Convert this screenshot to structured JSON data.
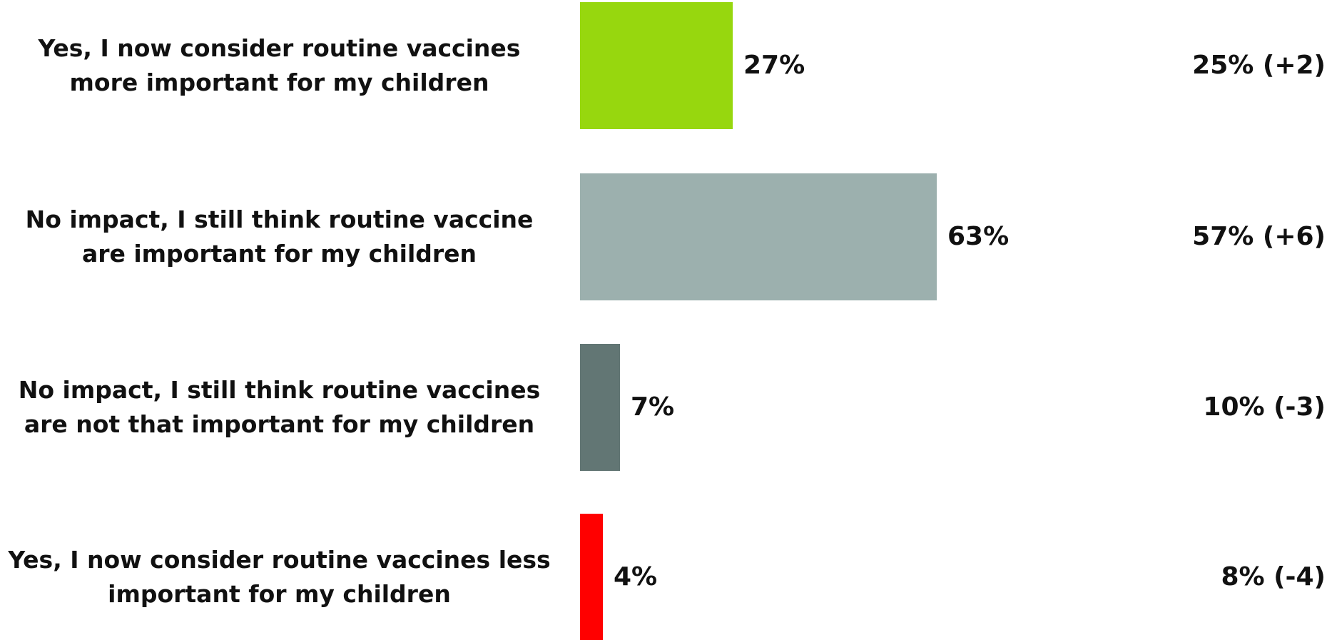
{
  "chart_data": {
    "type": "bar",
    "orientation": "horizontal",
    "categories": [
      "Yes, I now consider routine vaccines more important for my children",
      "No impact, I still think routine vaccine are important for my children",
      "No impact, I still think routine vaccines are not that important for my children",
      "Yes, I now consider routine vaccines less important for my children"
    ],
    "values": [
      27,
      63,
      7,
      4
    ],
    "value_labels": [
      "27%",
      "63%",
      "7%",
      "4%"
    ],
    "comparison_labels": [
      "25% (+2)",
      "57% (+6)",
      "10% (-3)",
      "8% (-4)"
    ],
    "colors": [
      "#97d70e",
      "#9cb0ae",
      "#627674",
      "#ff0000"
    ],
    "xlim": [
      0,
      100
    ],
    "grid": false
  }
}
